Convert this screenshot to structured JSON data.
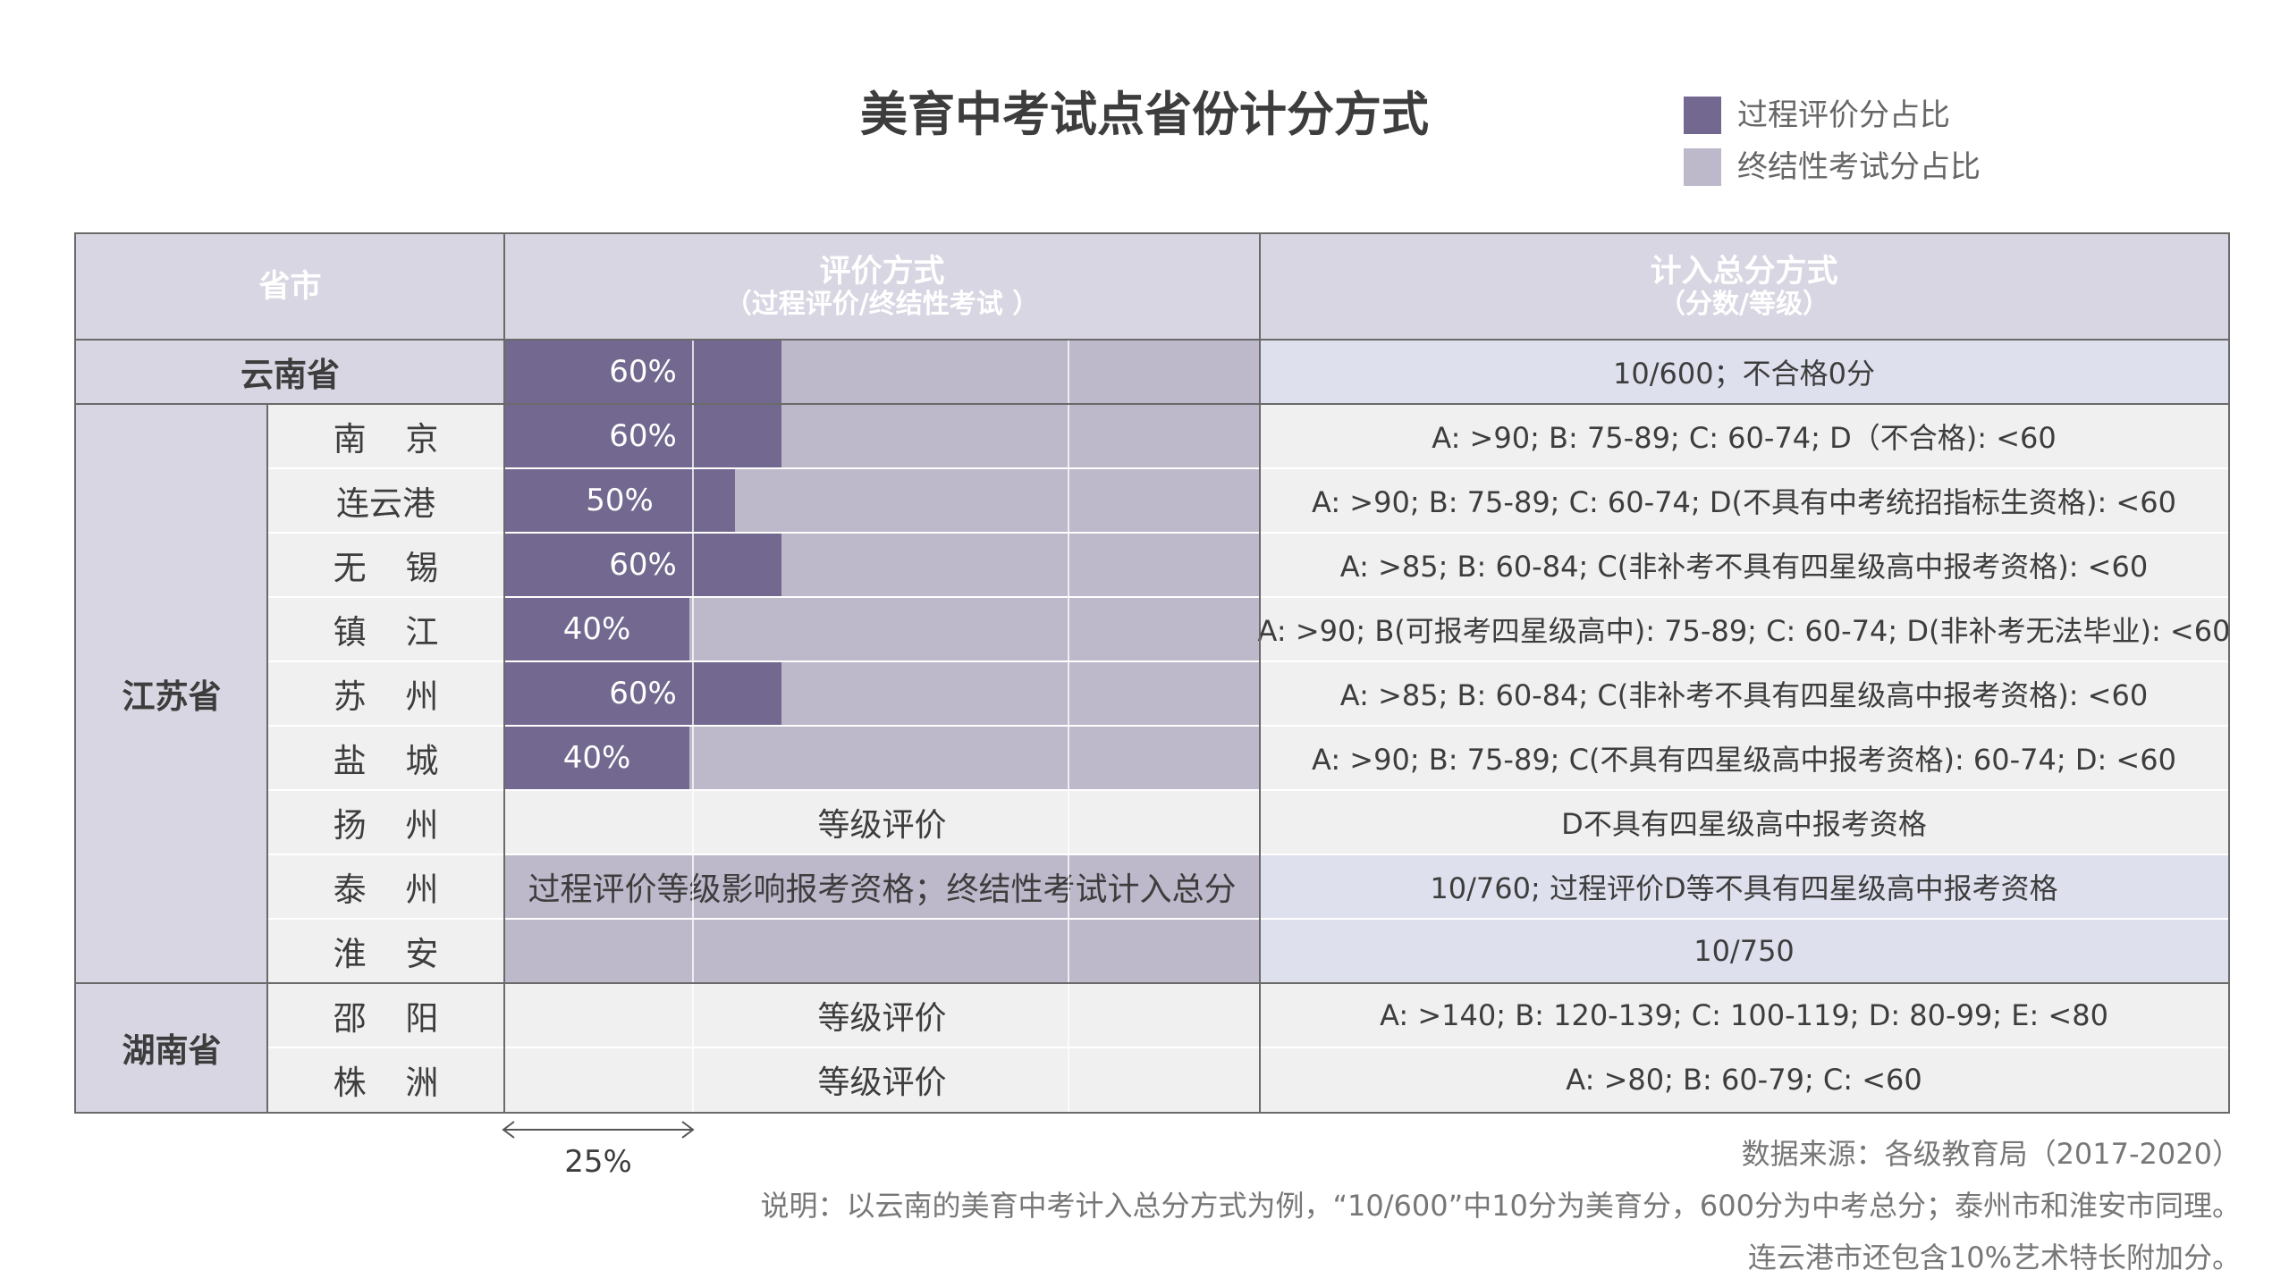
{
  "title": "美育中考试点省份计分方式",
  "legend": [
    {
      "label": "过程评价分占比",
      "color": "#736990"
    },
    {
      "label": "终结性考试分占比",
      "color": "#bdb8ca"
    }
  ],
  "header": {
    "col1": "省市",
    "col2_main": "评价方式",
    "col2_sub": "（过程评价/终结性考试 ）",
    "col3_main": "计入总分方式",
    "col3_sub": "（分数/等级）"
  },
  "chart_data": {
    "type": "bar",
    "xlabel": "",
    "ylabel": "",
    "xlim": [
      0,
      100
    ],
    "scale_marker": "25%",
    "series": [
      {
        "name": "过程评价分占比",
        "color": "#736990"
      },
      {
        "name": "终结性考试分占比",
        "color": "#bdb8ca"
      }
    ],
    "rows": [
      {
        "province": "云南省",
        "city": "",
        "process_pct": 60,
        "bar_label": "60%",
        "scoring": "10/600；不合格0分"
      },
      {
        "province": "江苏省",
        "city": "南 京",
        "process_pct": 60,
        "bar_label": "60%",
        "scoring": "A: >90; B: 75-89; C: 60-74; D（不合格): <60"
      },
      {
        "province": "江苏省",
        "city": "连云港",
        "process_pct": 50,
        "bar_label": "50%",
        "scoring": "A: >90; B: 75-89; C: 60-74; D(不具有中考统招指标生资格): <60"
      },
      {
        "province": "江苏省",
        "city": "无 锡",
        "process_pct": 60,
        "bar_label": "60%",
        "scoring": "A: >85; B: 60-84; C(非补考不具有四星级高中报考资格): <60"
      },
      {
        "province": "江苏省",
        "city": "镇 江",
        "process_pct": 40,
        "bar_label": "40%",
        "scoring": "A: >90; B(可报考四星级高中): 75-89; C: 60-74; D(非补考无法毕业): <60"
      },
      {
        "province": "江苏省",
        "city": "苏 州",
        "process_pct": 60,
        "bar_label": "60%",
        "scoring": "A: >85; B: 60-84; C(非补考不具有四星级高中报考资格): <60"
      },
      {
        "province": "江苏省",
        "city": "盐 城",
        "process_pct": 40,
        "bar_label": "40%",
        "scoring": "A: >90; B: 75-89; C(不具有四星级高中报考资格): 60-74; D: <60"
      },
      {
        "province": "江苏省",
        "city": "扬 州",
        "process_pct": null,
        "text": "等级评价",
        "scoring": "D不具有四星级高中报考资格"
      },
      {
        "province": "江苏省",
        "city": "泰 州",
        "process_pct": null,
        "text": "过程评价等级影响报考资格；终结性考试计入总分",
        "scoring": "10/760; 过程评价D等不具有四星级高中报考资格"
      },
      {
        "province": "江苏省",
        "city": "淮 安",
        "process_pct": null,
        "text": "",
        "scoring": "10/750"
      },
      {
        "province": "湖南省",
        "city": "邵 阳",
        "process_pct": null,
        "text": "等级评价",
        "scoring": "A: >140; B: 120-139; C: 100-119; D: 80-99; E: <80"
      },
      {
        "province": "湖南省",
        "city": "株 洲",
        "process_pct": null,
        "text": "等级评价",
        "scoring": "A: >80; B: 60-79; C: <60"
      }
    ],
    "provinces": [
      {
        "name": "云南省",
        "rows": [
          0,
          0
        ]
      },
      {
        "name": "江苏省",
        "rows": [
          1,
          9
        ]
      },
      {
        "name": "湖南省",
        "rows": [
          10,
          11
        ]
      }
    ]
  },
  "notes": {
    "source": "数据来源：各级教育局（2017-2020）",
    "explain": "说明：以云南的美育中考计入总分方式为例，“10/600”中10分为美育分，600分为中考总分；泰州市和淮安市同理。",
    "extra": "连云港市还包含10%艺术特长附加分。"
  }
}
